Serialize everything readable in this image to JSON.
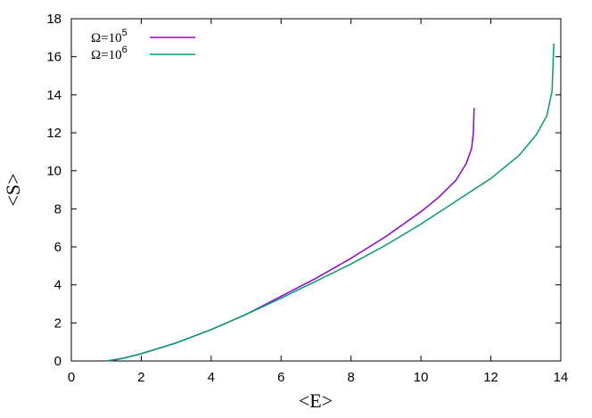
{
  "chart_data": {
    "type": "line",
    "title": "",
    "xlabel": "<E>",
    "ylabel": "<S>",
    "xlim": [
      0,
      14
    ],
    "ylim": [
      0,
      18
    ],
    "xticks": [
      0,
      2,
      4,
      6,
      8,
      10,
      12,
      14
    ],
    "yticks": [
      0,
      2,
      4,
      6,
      8,
      10,
      12,
      14,
      16,
      18
    ],
    "grid": false,
    "legend_position": "top-left",
    "series": [
      {
        "name": "Ω=10",
        "name_base": "Ω=10",
        "name_sup": "5",
        "color": "#9400d3",
        "x": [
          1.1,
          1.5,
          2,
          3,
          4,
          5,
          6,
          7,
          8,
          9,
          10,
          10.5,
          11,
          11.3,
          11.45,
          11.5,
          11.52
        ],
        "y": [
          0,
          0.15,
          0.38,
          0.95,
          1.65,
          2.45,
          3.4,
          4.35,
          5.4,
          6.55,
          7.85,
          8.6,
          9.5,
          10.4,
          11.2,
          12.0,
          13.3
        ]
      },
      {
        "name": "Ω=10",
        "name_base": "Ω=10",
        "name_sup": "6",
        "color": "#009e73",
        "x": [
          1.0,
          1.5,
          2,
          3,
          4,
          5,
          6,
          7,
          8,
          9,
          10,
          11,
          12,
          12.8,
          13.3,
          13.6,
          13.75,
          13.8
        ],
        "y": [
          0,
          0.15,
          0.38,
          0.95,
          1.65,
          2.45,
          3.3,
          4.2,
          5.1,
          6.1,
          7.2,
          8.4,
          9.6,
          10.8,
          11.9,
          12.9,
          14.2,
          16.7
        ]
      }
    ]
  }
}
